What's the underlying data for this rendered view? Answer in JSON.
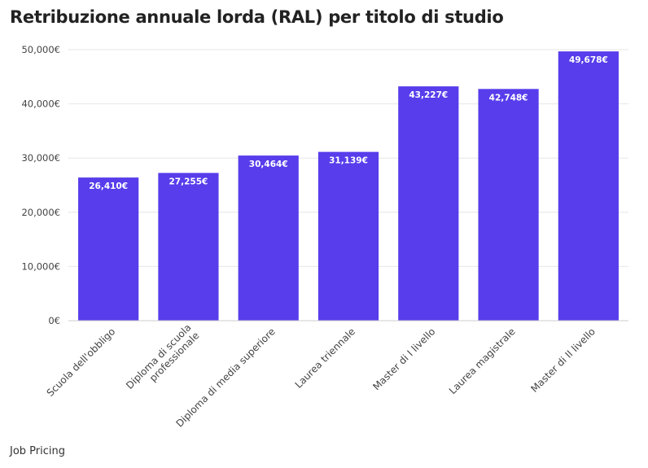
{
  "chart_data": {
    "type": "bar",
    "title": "Retribuzione annuale lorda (RAL) per titolo di studio",
    "categories": [
      [
        "Scuola dell'obbligo"
      ],
      [
        "Diploma di scuola",
        "professionale"
      ],
      [
        "Diploma di media superiore"
      ],
      [
        "Laurea triennale"
      ],
      [
        "Master di I livello"
      ],
      [
        "Laurea magistrale"
      ],
      [
        "Master di II livello"
      ]
    ],
    "values": [
      26410,
      27255,
      30464,
      31139,
      43227,
      42748,
      49678
    ],
    "data_labels": [
      "26,410€",
      "27,255€",
      "30,464€",
      "31,139€",
      "43,227€",
      "42,748€",
      "49,678€"
    ],
    "ylim": [
      0,
      50000
    ],
    "yticks": [
      0,
      10000,
      20000,
      30000,
      40000,
      50000
    ],
    "ytick_labels": [
      "0€",
      "10,000€",
      "20,000€",
      "30,000€",
      "40,000€",
      "50,000€"
    ],
    "xlabel": "",
    "ylabel": "",
    "grid": true,
    "bar_color": "#573deb",
    "source": "Job Pricing"
  }
}
